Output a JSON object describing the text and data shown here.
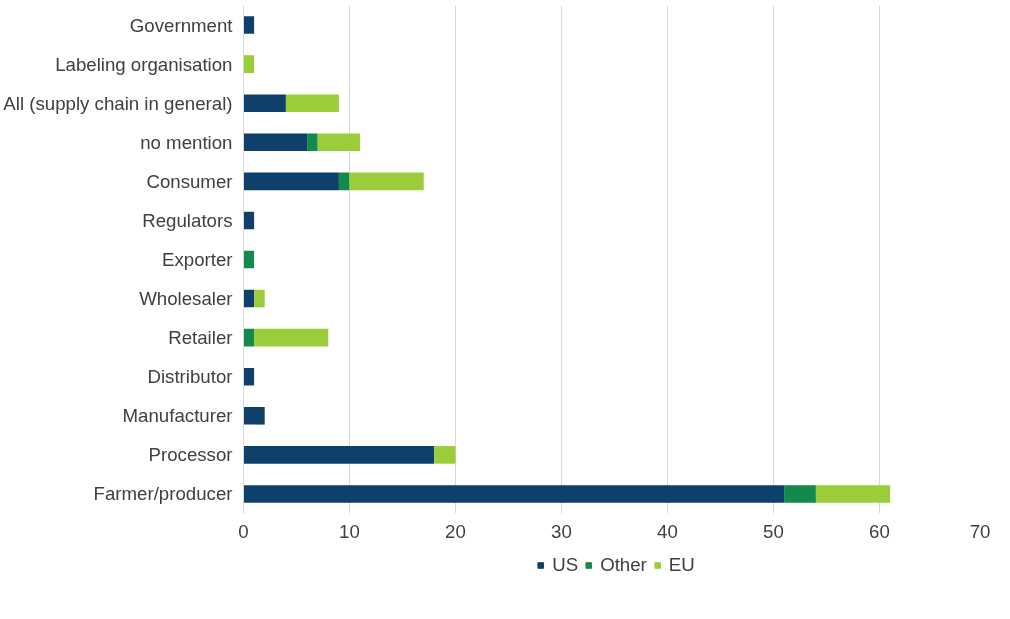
{
  "chart_data": {
    "type": "bar",
    "orientation": "horizontal",
    "stacked": true,
    "categories": [
      "Government",
      "Labeling organisation",
      "All (supply chain in general)",
      "no mention",
      "Consumer",
      "Regulators",
      "Exporter",
      "Wholesaler",
      "Retailer",
      "Distributor",
      "Manufacturer",
      "Processor",
      "Farmer/producer"
    ],
    "series": [
      {
        "name": "US",
        "color": "#0f3f6b",
        "values": [
          1,
          0,
          4,
          6,
          9,
          1,
          0,
          1,
          0,
          1,
          2,
          18,
          51
        ]
      },
      {
        "name": "Other",
        "color": "#138a4b",
        "values": [
          0,
          0,
          0,
          1,
          1,
          0,
          1,
          0,
          1,
          0,
          0,
          0,
          3
        ]
      },
      {
        "name": "EU",
        "color": "#9bcc3a",
        "values": [
          0,
          1,
          5,
          4,
          7,
          0,
          0,
          1,
          7,
          0,
          0,
          2,
          7
        ]
      }
    ],
    "xlim": [
      0,
      70
    ],
    "xticks": [
      0,
      10,
      20,
      30,
      40,
      50,
      60,
      70
    ],
    "grid": "x",
    "legend": "bottom"
  }
}
